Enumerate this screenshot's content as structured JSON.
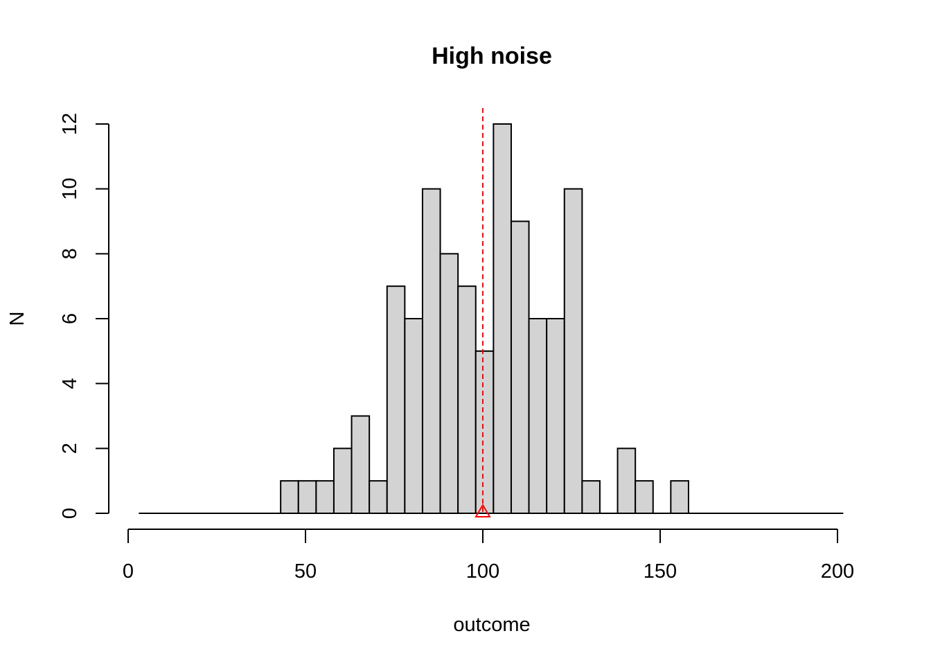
{
  "chart_data": {
    "type": "bar",
    "title": "High noise",
    "xlabel": "outcome",
    "ylabel": "N",
    "xlim": [
      0,
      200
    ],
    "ylim": [
      0,
      12
    ],
    "x_ticks": [
      0,
      50,
      100,
      150,
      200
    ],
    "y_ticks": [
      0,
      2,
      4,
      6,
      8,
      10,
      12
    ],
    "bin_width": 5,
    "bins": [
      {
        "start": 3,
        "count": 0
      },
      {
        "start": 8,
        "count": 0
      },
      {
        "start": 13,
        "count": 0
      },
      {
        "start": 18,
        "count": 0
      },
      {
        "start": 23,
        "count": 0
      },
      {
        "start": 28,
        "count": 0
      },
      {
        "start": 33,
        "count": 0
      },
      {
        "start": 38,
        "count": 0
      },
      {
        "start": 43,
        "count": 1
      },
      {
        "start": 48,
        "count": 1
      },
      {
        "start": 53,
        "count": 1
      },
      {
        "start": 58,
        "count": 2
      },
      {
        "start": 63,
        "count": 3
      },
      {
        "start": 68,
        "count": 1
      },
      {
        "start": 73,
        "count": 7
      },
      {
        "start": 78,
        "count": 6
      },
      {
        "start": 83,
        "count": 10
      },
      {
        "start": 88,
        "count": 8
      },
      {
        "start": 93,
        "count": 7
      },
      {
        "start": 98,
        "count": 5
      },
      {
        "start": 103,
        "count": 12
      },
      {
        "start": 108,
        "count": 9
      },
      {
        "start": 113,
        "count": 6
      },
      {
        "start": 118,
        "count": 6
      },
      {
        "start": 123,
        "count": 10
      },
      {
        "start": 128,
        "count": 1
      },
      {
        "start": 133,
        "count": 0
      },
      {
        "start": 138,
        "count": 2
      },
      {
        "start": 143,
        "count": 1
      },
      {
        "start": 148,
        "count": 0
      },
      {
        "start": 153,
        "count": 1
      },
      {
        "start": 158,
        "count": 0
      },
      {
        "start": 163,
        "count": 0
      },
      {
        "start": 168,
        "count": 0
      },
      {
        "start": 173,
        "count": 0
      },
      {
        "start": 178,
        "count": 0
      },
      {
        "start": 183,
        "count": 0
      },
      {
        "start": 188,
        "count": 0
      },
      {
        "start": 193,
        "count": 0
      },
      {
        "start": 198,
        "count": 0
      }
    ],
    "reference_line": {
      "x": 100,
      "color": "#ff0000",
      "style": "dashed",
      "marker": "triangle"
    },
    "grid": false,
    "legend": "none"
  },
  "colors": {
    "bar_fill": "#d3d3d3",
    "bar_stroke": "#000000",
    "reference": "#ff0000"
  }
}
